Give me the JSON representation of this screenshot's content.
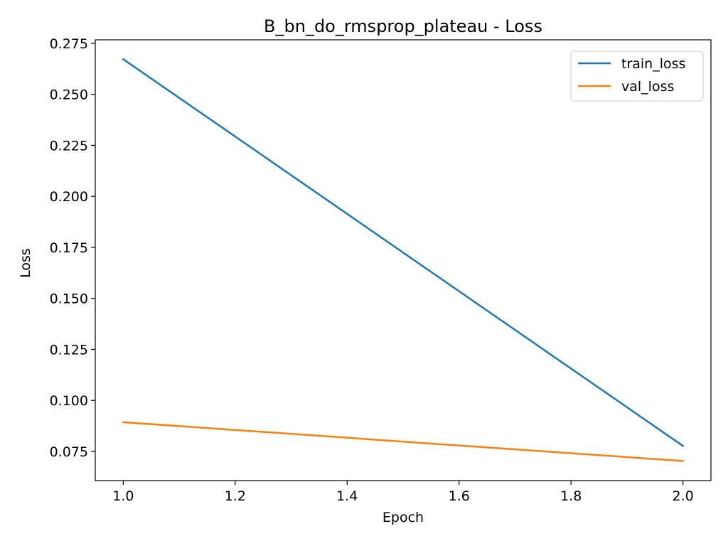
{
  "chart_data": {
    "type": "line",
    "title": "B_bn_do_rmsprop_plateau - Loss",
    "xlabel": "Epoch",
    "ylabel": "Loss",
    "x": [
      1.0,
      2.0
    ],
    "series": [
      {
        "name": "train_loss",
        "values": [
          0.2672,
          0.0777
        ],
        "color": "#1f77b4"
      },
      {
        "name": "val_loss",
        "values": [
          0.0893,
          0.0703
        ],
        "color": "#ff7f0e"
      }
    ],
    "xlim": [
      0.95,
      2.05
    ],
    "ylim": [
      0.0607,
      0.2767
    ],
    "xticks": [
      "1.0",
      "1.2",
      "1.4",
      "1.6",
      "1.8",
      "2.0"
    ],
    "yticks": [
      "0.075",
      "0.100",
      "0.125",
      "0.150",
      "0.175",
      "0.200",
      "0.225",
      "0.250",
      "0.275"
    ],
    "grid": false,
    "legend_position": "upper right"
  }
}
